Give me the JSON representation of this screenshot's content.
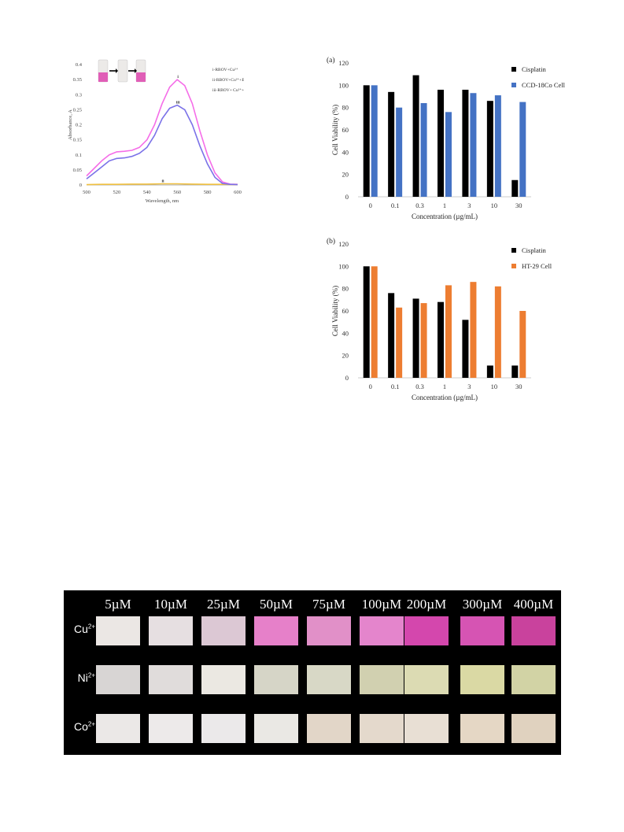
{
  "chart_data": [
    {
      "type": "line",
      "title": "",
      "xlabel": "Wavelength, nm",
      "ylabel": "Absorbance, A",
      "xlim": [
        500,
        600
      ],
      "ylim": [
        0,
        0.4
      ],
      "x_ticks": [
        "500",
        "520",
        "540",
        "560",
        "580",
        "600"
      ],
      "y_ticks": [
        "0",
        "0.05",
        "0.1",
        "0.15",
        "0.2",
        "0.25",
        "0.3",
        "0.35",
        "0.4"
      ],
      "legend": [
        "i-RBOV+Cu²⁺",
        "ii-RBOV+Cu²⁺+EDTA",
        "iii-RBOV+ Cu²⁺+EDTA+Cu²⁺"
      ],
      "inset": "vials",
      "series": [
        {
          "name": "i-RBOV+Cu²⁺",
          "marker": "i",
          "color": "#f56de8",
          "x": [
            500,
            505,
            510,
            515,
            520,
            525,
            530,
            535,
            540,
            545,
            550,
            555,
            560,
            565,
            570,
            575,
            580,
            585,
            590,
            595,
            600
          ],
          "y": [
            0.03,
            0.055,
            0.08,
            0.1,
            0.11,
            0.112,
            0.115,
            0.125,
            0.15,
            0.2,
            0.27,
            0.325,
            0.35,
            0.33,
            0.27,
            0.18,
            0.1,
            0.04,
            0.01,
            0.003,
            0.002
          ]
        },
        {
          "name": "ii-RBOV+Cu²⁺+EDTA",
          "marker": "ii",
          "color": "#f0c040",
          "x": [
            500,
            510,
            520,
            530,
            540,
            550,
            560,
            570,
            580,
            590,
            600
          ],
          "y": [
            0.001,
            0.002,
            0.002,
            0.003,
            0.003,
            0.004,
            0.004,
            0.003,
            0.002,
            0.002,
            0.001
          ]
        },
        {
          "name": "iii-RBOV+ Cu²⁺+EDTA+Cu²⁺",
          "marker": "iii",
          "color": "#7b72e8",
          "x": [
            500,
            505,
            510,
            515,
            520,
            525,
            530,
            535,
            540,
            545,
            550,
            555,
            560,
            565,
            570,
            575,
            580,
            585,
            590,
            595,
            600
          ],
          "y": [
            0.02,
            0.04,
            0.06,
            0.08,
            0.088,
            0.09,
            0.095,
            0.105,
            0.125,
            0.165,
            0.22,
            0.255,
            0.265,
            0.25,
            0.2,
            0.13,
            0.07,
            0.025,
            0.005,
            0.002,
            0.001
          ]
        }
      ]
    },
    {
      "type": "bar",
      "panel": "(a)",
      "categories": [
        "0",
        "0.1",
        "0.3",
        "1",
        "3",
        "10",
        "30"
      ],
      "xlabel": "Concentration (µg/mL)",
      "ylabel": "Cell Viability (%)",
      "ylim": [
        0,
        120
      ],
      "y_ticks": [
        "0",
        "20",
        "40",
        "60",
        "80",
        "100",
        "120"
      ],
      "legend_position": "top-right",
      "series": [
        {
          "name": "Cisplatin",
          "color": "#000000",
          "values": [
            100,
            94,
            109,
            96,
            96,
            86,
            15
          ]
        },
        {
          "name": "CCD-18Co Cell",
          "color": "#4472c4",
          "values": [
            100,
            80,
            84,
            76,
            93,
            91,
            85
          ]
        }
      ]
    },
    {
      "type": "bar",
      "panel": "(b)",
      "categories": [
        "0",
        "0.1",
        "0.3",
        "1",
        "3",
        "10",
        "30"
      ],
      "xlabel": "Concentration (µg/mL)",
      "ylabel": "Cell Viability (%)",
      "ylim": [
        0,
        120
      ],
      "y_ticks": [
        "0",
        "20",
        "40",
        "60",
        "80",
        "100",
        "120"
      ],
      "legend_position": "top-right",
      "series": [
        {
          "name": "Cisplatin",
          "color": "#000000",
          "values": [
            100,
            76,
            71,
            68,
            52,
            11,
            11
          ]
        },
        {
          "name": "HT-29 Cell",
          "color": "#ed7d31",
          "values": [
            100,
            63,
            67,
            83,
            86,
            82,
            60
          ]
        }
      ]
    }
  ],
  "color_strips": {
    "concentrations": [
      "5µM",
      "10µM",
      "25µM",
      "50µM",
      "75µM",
      "100µM",
      "200µM",
      "300µM",
      "400µM"
    ],
    "rows": [
      {
        "ion": "Cu",
        "charge": "2+",
        "colors": [
          "#ebe7e4",
          "#e6dfe1",
          "#dcc8d4",
          "#e680c9",
          "#e190c8",
          "#e485cc",
          "#d447ad",
          "#d654b3",
          "#c9429d"
        ]
      },
      {
        "ion": "Ni",
        "charge": "2+",
        "colors": [
          "#d8d5d4",
          "#e0dcdb",
          "#ebe8e2",
          "#d6d5c7",
          "#d8d8c6",
          "#d1d0b0",
          "#dcdbb3",
          "#dad9a4",
          "#d2d3a5"
        ]
      },
      {
        "ion": "Co",
        "charge": "2+",
        "colors": [
          "#ebe8e7",
          "#edeaea",
          "#ebe9ea",
          "#eae8e4",
          "#e2d6c8",
          "#e4d9cc",
          "#e8dfd4",
          "#e5d7c5",
          "#e0d2bf"
        ]
      }
    ]
  }
}
